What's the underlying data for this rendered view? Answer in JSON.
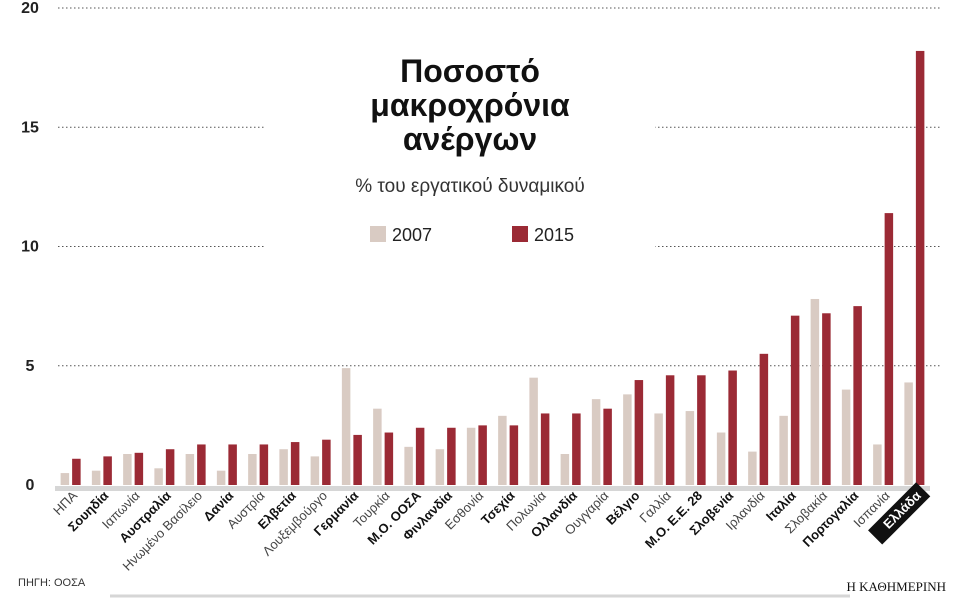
{
  "chart_data": {
    "type": "bar",
    "title": [
      "Ποσοστό",
      "μακροχρόνια",
      "ανέργων"
    ],
    "subtitle": "% του εργατικού δυναμικού",
    "categories": [
      "ΗΠΑ",
      "Σουηδία",
      "Ιαπωνία",
      "Αυστραλία",
      "Ηνωμένο Βασίλειο",
      "Δανία",
      "Αυστρία",
      "Ελβετία",
      "Λουξεμβούργο",
      "Γερμανία",
      "Τουρκία",
      "Μ.Ο. ΟΟΣΑ",
      "Φινλανδία",
      "Εσθονία",
      "Τσεχία",
      "Πολωνία",
      "Ολλανδία",
      "Ουγγαρία",
      "Βέλγιο",
      "Γαλλία",
      "Μ.Ο. Ε.Ε. 28",
      "Σλοβενία",
      "Ιρλανδία",
      "Ιταλία",
      "Σλοβακία",
      "Πορτογαλία",
      "Ισπανία",
      "Ελλάδα"
    ],
    "emphasized": [
      1,
      3,
      5,
      7,
      9,
      11,
      12,
      14,
      16,
      18,
      20,
      21,
      23,
      25,
      27
    ],
    "highlighted": 27,
    "series": [
      {
        "name": "2007",
        "color": "#d9cbc3",
        "values": [
          0.5,
          0.6,
          1.3,
          0.7,
          1.3,
          0.6,
          1.3,
          1.5,
          1.2,
          4.9,
          3.2,
          1.6,
          1.5,
          2.4,
          2.9,
          4.5,
          1.3,
          3.6,
          3.8,
          3.0,
          3.1,
          2.2,
          1.4,
          2.9,
          7.8,
          4.0,
          1.7,
          4.3
        ]
      },
      {
        "name": "2015",
        "color": "#9b2a35",
        "values": [
          1.1,
          1.2,
          1.35,
          1.5,
          1.7,
          1.7,
          1.7,
          1.8,
          1.9,
          2.1,
          2.2,
          2.4,
          2.4,
          2.5,
          2.5,
          3.0,
          3.0,
          3.2,
          4.4,
          4.6,
          4.6,
          4.8,
          5.5,
          7.1,
          7.2,
          7.5,
          11.4,
          18.2
        ]
      }
    ],
    "ylim": [
      0,
      20
    ],
    "yticks": [
      0,
      5,
      10,
      15,
      20
    ],
    "grid": true,
    "source": "ΠΗΓΗ: ΟΟΣΑ",
    "brand": "Η ΚΑΘΗΜΕΡΙΝΗ"
  }
}
